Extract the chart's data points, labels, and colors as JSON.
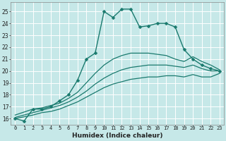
{
  "xlabel": "Humidex (Indice chaleur)",
  "bg_color": "#c6e8e8",
  "grid_color": "#ffffff",
  "line_color": "#1a7a6e",
  "xlim": [
    -0.5,
    23.5
  ],
  "ylim": [
    15.5,
    25.8
  ],
  "xticks": [
    0,
    1,
    2,
    3,
    4,
    5,
    6,
    7,
    8,
    9,
    10,
    11,
    12,
    13,
    14,
    15,
    16,
    17,
    18,
    19,
    20,
    21,
    22,
    23
  ],
  "yticks": [
    16,
    17,
    18,
    19,
    20,
    21,
    22,
    23,
    24,
    25
  ],
  "series": [
    {
      "x": [
        0,
        1,
        2,
        3,
        4,
        5,
        6,
        7,
        8,
        9,
        10,
        11,
        12,
        13,
        14,
        15,
        16,
        17,
        18,
        19,
        20,
        21,
        22,
        23
      ],
      "y": [
        16.0,
        15.8,
        16.8,
        16.8,
        17.0,
        17.5,
        18.0,
        19.2,
        21.0,
        21.5,
        25.0,
        24.5,
        25.2,
        25.2,
        23.7,
        23.8,
        24.0,
        24.0,
        23.7,
        21.8,
        21.0,
        20.5,
        20.2,
        20.0
      ],
      "has_marker": true,
      "markersize": 2.5,
      "linewidth": 1.0
    },
    {
      "x": [
        0,
        2,
        3,
        4,
        5,
        6,
        7,
        8,
        9,
        10,
        11,
        12,
        13,
        14,
        15,
        16,
        17,
        18,
        19,
        20,
        21,
        22,
        23
      ],
      "y": [
        16.3,
        16.8,
        16.9,
        17.1,
        17.3,
        17.7,
        18.2,
        19.0,
        19.8,
        20.5,
        21.0,
        21.3,
        21.5,
        21.5,
        21.5,
        21.4,
        21.3,
        21.0,
        20.8,
        21.2,
        20.8,
        20.5,
        20.1
      ],
      "has_marker": false,
      "markersize": 0,
      "linewidth": 0.9
    },
    {
      "x": [
        0,
        2,
        3,
        4,
        5,
        6,
        7,
        8,
        9,
        10,
        11,
        12,
        13,
        14,
        15,
        16,
        17,
        18,
        19,
        20,
        21,
        22,
        23
      ],
      "y": [
        16.1,
        16.5,
        16.7,
        16.9,
        17.1,
        17.4,
        17.8,
        18.3,
        18.9,
        19.4,
        19.8,
        20.1,
        20.3,
        20.4,
        20.5,
        20.5,
        20.5,
        20.4,
        20.3,
        20.5,
        20.2,
        20.0,
        20.0
      ],
      "has_marker": false,
      "markersize": 0,
      "linewidth": 0.9
    },
    {
      "x": [
        0,
        2,
        3,
        4,
        5,
        6,
        7,
        8,
        9,
        10,
        11,
        12,
        13,
        14,
        15,
        16,
        17,
        18,
        19,
        20,
        21,
        22,
        23
      ],
      "y": [
        16.0,
        16.3,
        16.5,
        16.6,
        16.8,
        17.1,
        17.4,
        17.8,
        18.2,
        18.6,
        18.9,
        19.1,
        19.3,
        19.4,
        19.5,
        19.5,
        19.6,
        19.6,
        19.5,
        19.7,
        19.5,
        19.5,
        19.8
      ],
      "has_marker": false,
      "markersize": 0,
      "linewidth": 0.9
    }
  ]
}
